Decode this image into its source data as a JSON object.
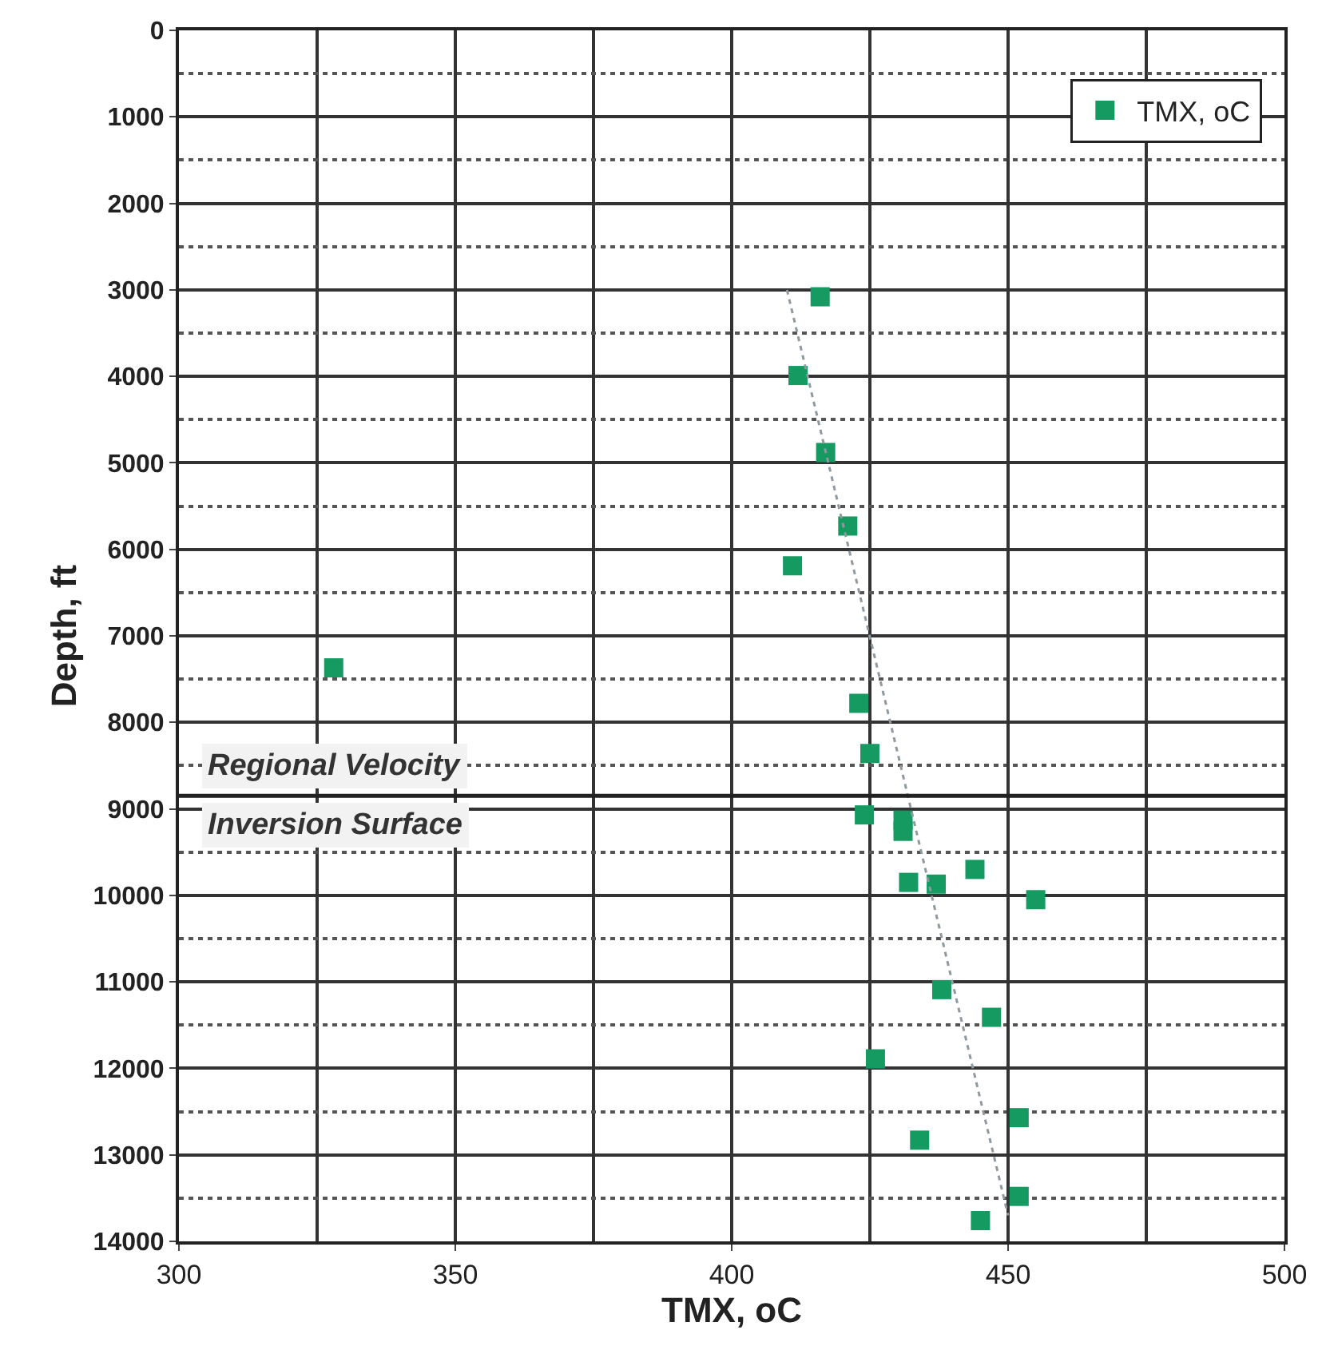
{
  "chart_data": {
    "type": "scatter",
    "xlabel": "TMX, oC",
    "ylabel": "Depth, ft",
    "xlim": [
      300,
      500
    ],
    "xticks": [
      300,
      350,
      400,
      450,
      500
    ],
    "ylim": [
      14000,
      0
    ],
    "yticks": [
      0,
      1000,
      2000,
      3000,
      4000,
      5000,
      6000,
      7000,
      8000,
      9000,
      10000,
      11000,
      12000,
      13000,
      14000
    ],
    "grid": true,
    "legend": "top right",
    "marker": "square",
    "series": [
      {
        "name": "TMX, oC",
        "color": "#159a62",
        "x": [
          416,
          412,
          417,
          421,
          411,
          328,
          423,
          425,
          424,
          431,
          431,
          432,
          437,
          444,
          455,
          438,
          447,
          426,
          434,
          452,
          452,
          445
        ],
        "values": [
          3080,
          3990,
          4880,
          5730,
          6190,
          7370,
          7780,
          8360,
          9070,
          9130,
          9260,
          9850,
          9870,
          9700,
          10050,
          11090,
          11410,
          11890,
          12830,
          12570,
          13480,
          13760
        ]
      },
      {
        "type": "line",
        "color": "#8f9aa0",
        "line_style": "dotted",
        "marker": "none",
        "x": [
          410,
          450
        ],
        "values": [
          3000,
          13700
        ]
      }
    ],
    "ref_lines": [
      {
        "axis": "y",
        "value": 8850,
        "label": "Regional Velocity Inversion Surface",
        "color": "#222222"
      }
    ]
  }
}
